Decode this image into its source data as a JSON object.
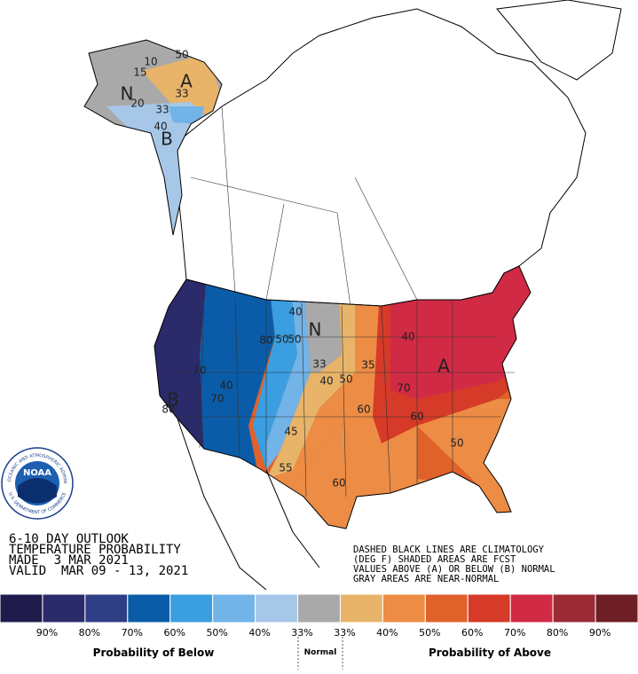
{
  "map": {
    "labels": [
      "50",
      "A",
      "N",
      "15",
      "20",
      "33",
      "33",
      "40",
      "B",
      "10",
      "40",
      "N",
      "50",
      "80",
      "50",
      "33",
      "35",
      "40",
      "50",
      "70",
      "60",
      "A",
      "40",
      "70",
      "45",
      "60",
      "50",
      "55",
      "60",
      "80",
      "B",
      "70",
      "40"
    ]
  },
  "logo": {
    "text": "NOAA",
    "ring_top": "NATIONAL OCEANIC AND ATMOSPHERIC ADMINISTRATION",
    "ring_bottom": "U.S. DEPARTMENT OF COMMERCE"
  },
  "title_block": {
    "lines": [
      "6-10 DAY OUTLOOK",
      "TEMPERATURE PROBABILITY",
      "MADE  3 MAR 2021",
      "VALID  MAR 09 - 13, 2021"
    ]
  },
  "notes": {
    "lines": [
      "DASHED BLACK LINES ARE CLIMATOLOGY",
      "(DEG F) SHADED AREAS ARE FCST",
      "VALUES ABOVE (A) OR BELOW (B) NORMAL",
      "GRAY AREAS ARE NEAR-NORMAL"
    ]
  },
  "legend": {
    "colors": [
      "#1f1b4d",
      "#2b2a6b",
      "#2f3f86",
      "#0b5ca8",
      "#3a9ee0",
      "#72b3e8",
      "#a6c7e8",
      "#a9a9a9",
      "#e8b46a",
      "#ec8c45",
      "#e0622b",
      "#d63a28",
      "#d12a45",
      "#9a2a34",
      "#6e1f26"
    ],
    "labels": [
      "90%",
      "80%",
      "70%",
      "60%",
      "50%",
      "40%",
      "33%",
      "33%",
      "40%",
      "50%",
      "60%",
      "70%",
      "80%",
      "90%"
    ],
    "below": "Probability of Below",
    "normal": "Normal",
    "above": "Probability of Above"
  }
}
